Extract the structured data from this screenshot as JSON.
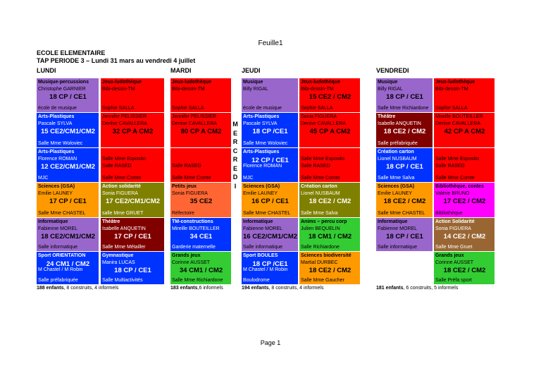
{
  "sheet_name": "Feuille1",
  "school": "ECOLE ELEMENTAIRE",
  "period": "TAP PERIODE 3 – Lundi 31 mars au vendredi 4 juillet",
  "mercredi": "MERCREDI",
  "days": [
    "LUNDI",
    "MARDI",
    "JEUDI",
    "VENDREDI"
  ],
  "colors": {
    "violet": "#9966cc",
    "red": "#ff0000",
    "blue": "#0033ff",
    "orange": "#ff9900",
    "olive": "#808000",
    "green": "#33cc33",
    "darkred": "#800000",
    "magenta": "#ff00ff",
    "brown": "#996633",
    "salmon": "#ff6633",
    "gray": "#808080"
  },
  "cells": [
    {
      "col": 0,
      "row": 0,
      "color": "violet",
      "lines": [
        "Musique-percussions",
        "Christophe GARNIER"
      ],
      "big": "18 CP / CE1",
      "footer": "école de musique",
      "bold0": true
    },
    {
      "col": 1,
      "row": 0,
      "color": "red",
      "lines": [
        "Jeux-ludothèque",
        "Bibi-dessin-TM"
      ],
      "big": "",
      "footer": "Sophie SALLA",
      "bold0": true
    },
    {
      "col": 2,
      "row": 0,
      "color": "red",
      "lines": [
        "Jeux-ludothèque",
        "Bibi-dessin-TM"
      ],
      "big": "",
      "footer": "Sophie SALLA",
      "bold0": true
    },
    {
      "col": 3,
      "row": 0,
      "color": "violet",
      "lines": [
        "Musique",
        "Billy RIGAL"
      ],
      "big": "",
      "footer": "école de musique",
      "bold0": true
    },
    {
      "col": 4,
      "row": 0,
      "color": "red",
      "lines": [
        "Jeux-ludothèque",
        "Bibi-dessin-TM"
      ],
      "big": "15 CE2 / CM2",
      "footer": "Sophie SALLA",
      "bold0": true
    },
    {
      "col": 5,
      "row": 0,
      "color": "violet",
      "lines": [
        "Musique",
        "Billy RIGAL"
      ],
      "big": "18 CP / CE1",
      "footer": "Salle Mme Richiardone",
      "bold0": true
    },
    {
      "col": 6,
      "row": 0,
      "color": "red",
      "lines": [
        "Jeux-ludothèque",
        "Bibi-dessin-TM"
      ],
      "big": "",
      "footer": "Sophie SALLA",
      "bold0": true
    },
    {
      "col": 0,
      "row": 1,
      "color": "blue",
      "lines": [
        "Arts-Plastiques",
        "Pascale SYLVA"
      ],
      "big": "15 CE2/CM1/CM2",
      "footer": "Salle Mme Woloviec",
      "bold0": true
    },
    {
      "col": 1,
      "row": 1,
      "color": "red",
      "lines": [
        "Jennifer PELISSIER",
        "Denise CAVALLERA"
      ],
      "big": "32 CP A CM2",
      "footer": "",
      "bold0": false
    },
    {
      "col": 2,
      "row": 1,
      "color": "red",
      "lines": [
        "Jennifer PELISSIER",
        "Denise CAVALLERA"
      ],
      "big": "80 CP A CM2",
      "footer": "",
      "bold0": false
    },
    {
      "col": 3,
      "row": 1,
      "color": "blue",
      "lines": [
        "Arts-Plastiques",
        "Pascale SYLVA"
      ],
      "big": "18 CP /CE1",
      "footer": "Salle Mme Woloviec",
      "bold0": true
    },
    {
      "col": 4,
      "row": 1,
      "color": "red",
      "lines": [
        "Sonia FIGUERA",
        "Denise CAVALLERA"
      ],
      "big": "45 CP A CM2",
      "footer": "",
      "bold0": false
    },
    {
      "col": 5,
      "row": 1,
      "color": "darkred",
      "lines": [
        "Théâtre",
        "Isabelle ANQUETIN"
      ],
      "big": "18 CE2 / CM2",
      "footer": "Salle préfabriquée",
      "bold0": true
    },
    {
      "col": 6,
      "row": 1,
      "color": "red",
      "lines": [
        "Mireille BOUTEILLER",
        "Denise CAVALLERA"
      ],
      "big": "42 CP A CM2",
      "footer": "",
      "bold0": false
    },
    {
      "col": 0,
      "row": 2,
      "color": "blue",
      "lines": [
        "Arts-Plastiques",
        "Florence ROMAN"
      ],
      "big": "12 CE2/CM1/CM2",
      "footer": "MJC",
      "bold0": true
    },
    {
      "col": 1,
      "row": 2,
      "color": "red",
      "lines": [
        "",
        "Salle Mme Esposito",
        "Salle RASED"
      ],
      "big": "",
      "footer": "Salle Mme Comte",
      "bold0": false
    },
    {
      "col": 2,
      "row": 2,
      "color": "red",
      "lines": [
        "",
        "",
        "Salle RASED"
      ],
      "big": "",
      "footer": "Salle Mme Comte",
      "bold0": false
    },
    {
      "col": 3,
      "row": 2,
      "color": "blue",
      "lines": [
        "Arts-Plastiques",
        "",
        "Florence ROMAN"
      ],
      "big": "12 CP / CE1",
      "footer": "MJC",
      "bold0": true
    },
    {
      "col": 4,
      "row": 2,
      "color": "red",
      "lines": [
        "",
        "Salle Mme Esposito",
        "Salle RASED"
      ],
      "big": "",
      "footer": "Salle Mme Comte",
      "bold0": false
    },
    {
      "col": 5,
      "row": 2,
      "color": "blue",
      "lines": [
        "Création carton",
        "Lionel NUSBAUM"
      ],
      "big": "18 CP / CE1",
      "footer": "Salle Mme Salva",
      "bold0": true
    },
    {
      "col": 6,
      "row": 2,
      "color": "red",
      "lines": [
        "",
        "Salle Mme Esposito",
        "Salle RASED"
      ],
      "big": "",
      "footer": "Salle Mme Comte",
      "bold0": false
    },
    {
      "col": 0,
      "row": 3,
      "color": "orange",
      "lines": [
        "Sciences (GSA)",
        "Emilie LAUNEY"
      ],
      "big": "17 CP / CE1",
      "footer": "Salle Mme CHASTEL",
      "bold0": true
    },
    {
      "col": 1,
      "row": 3,
      "color": "olive",
      "lines": [
        "Action solidarité",
        "Sonia FIGUERA"
      ],
      "big": "17 CE2/CM1/CM2",
      "footer": "salle Mme GRUET",
      "bold0": true
    },
    {
      "col": 2,
      "row": 3,
      "color": "salmon",
      "lines": [
        "Petits jeux",
        "Sonia FIGUERA"
      ],
      "big": "35 CE2",
      "footer": "Réfectoire",
      "bold0": true
    },
    {
      "col": 3,
      "row": 3,
      "color": "orange",
      "lines": [
        "Sciences (GSA)",
        "Emilie LAUNEY"
      ],
      "big": "16 CP / CE1",
      "footer": "Salle Mme CHASTEL",
      "bold0": true
    },
    {
      "col": 4,
      "row": 3,
      "color": "olive",
      "lines": [
        "Création carton",
        "Lionel NUSBAUM"
      ],
      "big": "18 CE2 / CM2",
      "footer": "Salle Mme Salva",
      "bold0": true
    },
    {
      "col": 5,
      "row": 3,
      "color": "orange",
      "lines": [
        "Sciences (GSA)",
        "Emilie LAUNEY"
      ],
      "big": "18 CE2 / CM2",
      "footer": "Salle Mme CHASTEL",
      "bold0": true
    },
    {
      "col": 6,
      "row": 3,
      "color": "magenta",
      "lines": [
        "Bibliothèque, contes",
        "Valérie BRUNO"
      ],
      "big": "17 CE2 / CM2",
      "footer": "Bibliothèque",
      "bold0": true
    },
    {
      "col": 0,
      "row": 4,
      "color": "violet",
      "lines": [
        "Informatique",
        "Fabienne MOREL"
      ],
      "big": "18 CE2/CM1/CM2",
      "footer": "Salle informatique",
      "bold0": true
    },
    {
      "col": 1,
      "row": 4,
      "color": "darkred",
      "lines": [
        "Théâtre",
        "Isabelle ANQUETIN"
      ],
      "big": "17 CP / CE1",
      "footer": "Salle Mme Métailler",
      "bold0": true
    },
    {
      "col": 2,
      "row": 4,
      "color": "blue",
      "lines": [
        "TM-constructions",
        "Mireille BOUTEILLER"
      ],
      "big": "34 CE1",
      "footer": "Garderie maternelle",
      "bold0": true
    },
    {
      "col": 3,
      "row": 4,
      "color": "violet",
      "lines": [
        "Informatique",
        "Fabienne MOREL"
      ],
      "big": "16 CE2/CM1/CM2",
      "footer": "Salle informatique",
      "bold0": true
    },
    {
      "col": 4,
      "row": 4,
      "color": "green",
      "lines": [
        "Anims – percu corp",
        "Julien BEQUELIN"
      ],
      "big": "18 CM1 / CM2",
      "footer": "Salle Richiardone",
      "bold0": true
    },
    {
      "col": 5,
      "row": 4,
      "color": "violet",
      "lines": [
        "Informatique",
        "Fabienne MOREL"
      ],
      "big": "18 CP / CE1",
      "footer": "Salle informatique",
      "bold0": true
    },
    {
      "col": 6,
      "row": 4,
      "color": "brown",
      "lines": [
        "Action Solidarité",
        "Sonia FIGUERA"
      ],
      "big": "14 CE2 / CM2",
      "footer": "Salle Mme Gruet",
      "bold0": true
    },
    {
      "col": 0,
      "row": 5,
      "color": "blue",
      "lines": [
        "Sport ORIENTATION",
        "",
        "M Chastel / M Robin"
      ],
      "big": "24 CM1 / CM2",
      "footer": "Salle préfabriquée",
      "bold0": true
    },
    {
      "col": 1,
      "row": 5,
      "color": "blue",
      "lines": [
        "Gymnastique",
        "Manira LUCAS"
      ],
      "big": "18 CP / CE1",
      "footer": "Salle Multiactivités",
      "bold0": true
    },
    {
      "col": 2,
      "row": 5,
      "color": "green",
      "lines": [
        "Grands jeux",
        "Corinne AUSSET"
      ],
      "big": "34 CM1 / CM2",
      "footer": "Salle Mme Richiardone",
      "bold0": true
    },
    {
      "col": 3,
      "row": 5,
      "color": "blue",
      "lines": [
        "Sport BOULES",
        "",
        "M Chastel / M Robin"
      ],
      "big": "18 CP /CE1",
      "footer": "Boulodrome",
      "bold0": true
    },
    {
      "col": 4,
      "row": 5,
      "color": "orange",
      "lines": [
        "Sciences biodiversité",
        "Martial DURBEC"
      ],
      "big": "18 CE2 / CM2",
      "footer": "Salle Mme Gaucher",
      "bold0": true
    },
    {
      "col": 6,
      "row": 5,
      "color": "green",
      "lines": [
        "Grands jeux",
        "Corinne AUSSET"
      ],
      "big": "18 CE2 / CM2",
      "footer": "Salle Préfa sport",
      "bold0": true
    }
  ],
  "totals": [
    {
      "bold": "188 enfants",
      "rest": ", 8 construits, 4 informels"
    },
    {
      "bold": "183 enfants",
      "rest": ",6 informels"
    },
    {
      "bold": "194 enfants",
      "rest": ", 8 construits, 4 informels"
    },
    {
      "bold": "181 enfants",
      "rest": ", 6 construits, 5 informels"
    }
  ],
  "page_label": "Page 1"
}
